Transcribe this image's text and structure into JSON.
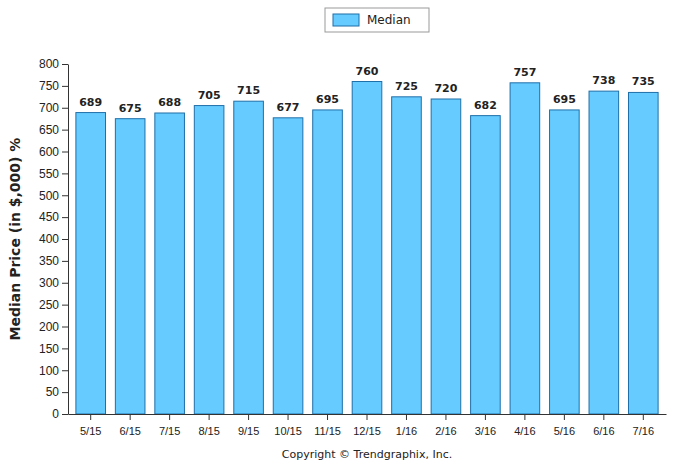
{
  "chart_data": {
    "type": "bar",
    "y_label": "Median Price (in $,000) %",
    "annotations": [
      "Copyright © Trendgraphix, Inc."
    ],
    "categories": [
      "5/15",
      "6/15",
      "7/15",
      "8/15",
      "9/15",
      "10/15",
      "11/15",
      "12/15",
      "1/16",
      "2/16",
      "3/16",
      "4/16",
      "5/16",
      "6/16",
      "7/16"
    ],
    "series": [
      {
        "name": "Median",
        "color": "#66ccff",
        "values": [
          689,
          675,
          688,
          705,
          715,
          677,
          695,
          760,
          725,
          720,
          682,
          757,
          695,
          738,
          735
        ]
      }
    ],
    "ylim": [
      0,
      800
    ],
    "yticks": [
      0,
      50,
      100,
      150,
      200,
      250,
      300,
      350,
      400,
      450,
      500,
      550,
      600,
      650,
      700,
      750,
      800
    ],
    "grid": false,
    "legend": "top",
    "data_labels": true
  }
}
